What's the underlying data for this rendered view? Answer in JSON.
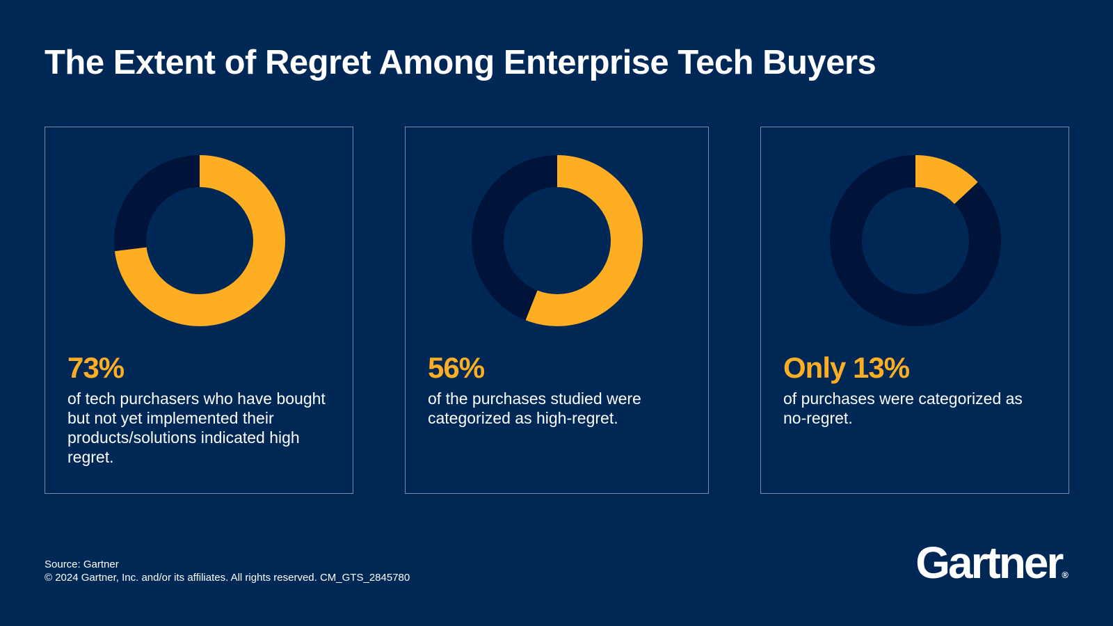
{
  "title": "The Extent of Regret Among Enterprise Tech Buyers",
  "colors": {
    "background": "#002856",
    "accent": "#fdae23",
    "track": "#00143a",
    "border": "#7a8aa3"
  },
  "chart_data": [
    {
      "type": "pie",
      "subtype": "donut",
      "value": 73,
      "remainder": 27,
      "stat_label": "73%",
      "description": "of tech purchasers who have bought but not yet implemented their products/solutions indicated high regret."
    },
    {
      "type": "pie",
      "subtype": "donut",
      "value": 56,
      "remainder": 44,
      "stat_label": "56%",
      "description": "of the purchases studied were categorized as high-regret."
    },
    {
      "type": "pie",
      "subtype": "donut",
      "value": 13,
      "remainder": 87,
      "stat_label": "Only 13%",
      "description": "of purchases were categorized as no-regret."
    }
  ],
  "footer": {
    "source": "Source: Gartner",
    "copyright": "© 2024 Gartner, Inc. and/or its affiliates. All rights reserved. CM_GTS_2845780"
  },
  "logo": {
    "text": "Gartner",
    "mark": "®"
  }
}
